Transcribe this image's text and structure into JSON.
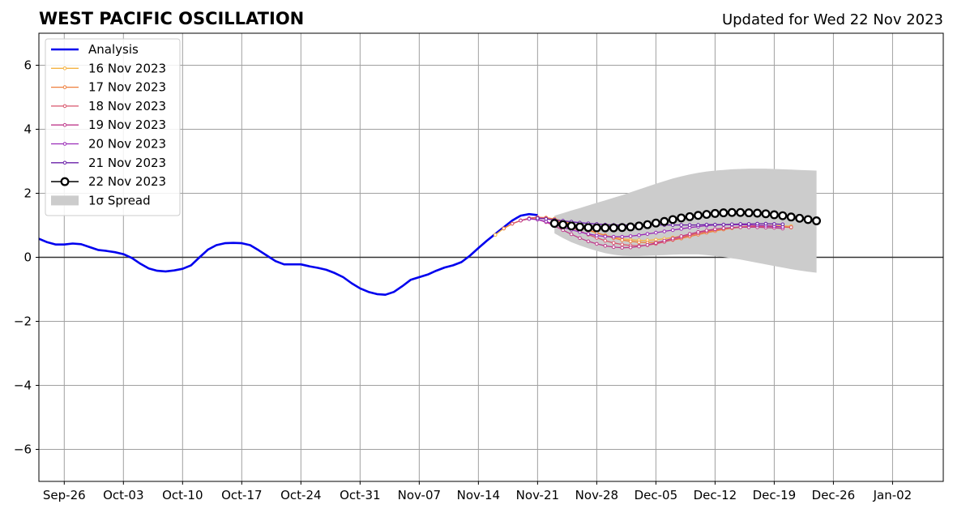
{
  "chart_data": {
    "type": "line",
    "title": "WEST PACIFIC OSCILLATION",
    "subtitle": "Updated for Wed 22 Nov 2023",
    "xlabel": "",
    "ylabel": "",
    "xlim": [
      "2023-09-23",
      "2024-01-08"
    ],
    "ylim": [
      -7,
      7
    ],
    "grid": true,
    "legend_position": "top-left",
    "x_ticks": [
      "Sep-26",
      "Oct-03",
      "Oct-10",
      "Oct-17",
      "Oct-24",
      "Oct-31",
      "Nov-07",
      "Nov-14",
      "Nov-21",
      "Nov-28",
      "Dec-05",
      "Dec-12",
      "Dec-19",
      "Dec-26",
      "Jan-02"
    ],
    "x_tick_dates": [
      "2023-09-26",
      "2023-10-03",
      "2023-10-10",
      "2023-10-17",
      "2023-10-24",
      "2023-10-31",
      "2023-11-07",
      "2023-11-14",
      "2023-11-21",
      "2023-11-28",
      "2023-12-05",
      "2023-12-12",
      "2023-12-19",
      "2023-12-26",
      "2024-01-02"
    ],
    "y_ticks": [
      6,
      4,
      2,
      0,
      -2,
      -4,
      -6
    ],
    "y_tick_labels": [
      "6",
      "4",
      "2",
      "0",
      "−2",
      "−4",
      "−6"
    ],
    "analysis": {
      "name": "Analysis",
      "color": "#0000ee",
      "x": [
        "2023-09-23",
        "2023-09-24",
        "2023-09-25",
        "2023-09-26",
        "2023-09-27",
        "2023-09-28",
        "2023-09-29",
        "2023-09-30",
        "2023-10-01",
        "2023-10-02",
        "2023-10-03",
        "2023-10-04",
        "2023-10-05",
        "2023-10-06",
        "2023-10-07",
        "2023-10-08",
        "2023-10-09",
        "2023-10-10",
        "2023-10-11",
        "2023-10-12",
        "2023-10-13",
        "2023-10-14",
        "2023-10-15",
        "2023-10-16",
        "2023-10-17",
        "2023-10-18",
        "2023-10-19",
        "2023-10-20",
        "2023-10-21",
        "2023-10-22",
        "2023-10-23",
        "2023-10-24",
        "2023-10-25",
        "2023-10-26",
        "2023-10-27",
        "2023-10-28",
        "2023-10-29",
        "2023-10-30",
        "2023-10-31",
        "2023-11-01",
        "2023-11-02",
        "2023-11-03",
        "2023-11-04",
        "2023-11-05",
        "2023-11-06",
        "2023-11-07",
        "2023-11-08",
        "2023-11-09",
        "2023-11-10",
        "2023-11-11",
        "2023-11-12",
        "2023-11-13",
        "2023-11-14",
        "2023-11-15",
        "2023-11-16",
        "2023-11-17",
        "2023-11-18",
        "2023-11-19",
        "2023-11-20",
        "2023-11-21"
      ],
      "values": [
        0.58,
        0.47,
        0.4,
        0.4,
        0.43,
        0.41,
        0.32,
        0.23,
        0.2,
        0.16,
        0.1,
        -0.02,
        -0.2,
        -0.35,
        -0.42,
        -0.44,
        -0.41,
        -0.36,
        -0.25,
        0.0,
        0.24,
        0.38,
        0.44,
        0.45,
        0.44,
        0.38,
        0.22,
        0.05,
        -0.12,
        -0.22,
        -0.22,
        -0.22,
        -0.28,
        -0.33,
        -0.39,
        -0.49,
        -0.62,
        -0.81,
        -0.97,
        -1.08,
        -1.15,
        -1.17,
        -1.08,
        -0.9,
        -0.7,
        -0.62,
        -0.54,
        -0.42,
        -0.32,
        -0.25,
        -0.15,
        0.05,
        0.29,
        0.52,
        0.73,
        0.94,
        1.15,
        1.3,
        1.35,
        1.32
      ]
    },
    "forecasts": [
      {
        "name": "16 Nov 2023",
        "color": "#f5b342",
        "start": "2023-11-16",
        "values": [
          0.7,
          0.9,
          1.05,
          1.15,
          1.2,
          1.22,
          1.2,
          1.16,
          1.1,
          1.02,
          0.93,
          0.84,
          0.76,
          0.69,
          0.63,
          0.58,
          0.55,
          0.53,
          0.53,
          0.55,
          0.58,
          0.62,
          0.66,
          0.71,
          0.76,
          0.8,
          0.85,
          0.89,
          0.92,
          0.95,
          0.97,
          0.98,
          0.99,
          0.99,
          0.98,
          0.97
        ]
      },
      {
        "name": "17 Nov 2023",
        "color": "#ee7f3c",
        "start": "2023-11-17",
        "values": [
          0.9,
          1.05,
          1.15,
          1.22,
          1.25,
          1.24,
          1.2,
          1.13,
          1.05,
          0.96,
          0.86,
          0.77,
          0.68,
          0.6,
          0.54,
          0.5,
          0.47,
          0.46,
          0.47,
          0.5,
          0.54,
          0.59,
          0.65,
          0.71,
          0.77,
          0.82,
          0.87,
          0.91,
          0.94,
          0.96,
          0.97,
          0.97,
          0.96,
          0.95,
          0.93
        ]
      },
      {
        "name": "18 Nov 2023",
        "color": "#d9546b",
        "start": "2023-11-18",
        "values": [
          1.05,
          1.15,
          1.22,
          1.25,
          1.22,
          1.15,
          1.05,
          0.94,
          0.82,
          0.71,
          0.61,
          0.52,
          0.45,
          0.4,
          0.37,
          0.36,
          0.38,
          0.42,
          0.48,
          0.55,
          0.62,
          0.69,
          0.75,
          0.81,
          0.86,
          0.9,
          0.93,
          0.95,
          0.96,
          0.97,
          0.97,
          0.96,
          0.95,
          0.94
        ]
      },
      {
        "name": "19 Nov 2023",
        "color": "#bf3b8c",
        "start": "2023-11-19",
        "values": [
          1.15,
          1.2,
          1.18,
          1.1,
          0.98,
          0.85,
          0.72,
          0.6,
          0.5,
          0.42,
          0.36,
          0.32,
          0.3,
          0.31,
          0.34,
          0.39,
          0.45,
          0.52,
          0.59,
          0.66,
          0.73,
          0.79,
          0.84,
          0.88,
          0.91,
          0.93,
          0.94,
          0.94,
          0.94,
          0.93,
          0.92,
          0.9
        ]
      },
      {
        "name": "20 Nov 2023",
        "color": "#9a2bb8",
        "start": "2023-11-20",
        "values": [
          1.2,
          1.18,
          1.12,
          1.03,
          0.94,
          0.86,
          0.79,
          0.73,
          0.68,
          0.65,
          0.64,
          0.64,
          0.66,
          0.69,
          0.73,
          0.77,
          0.81,
          0.85,
          0.89,
          0.93,
          0.96,
          0.99,
          1.01,
          1.02,
          1.02,
          1.02,
          1.01,
          1.0,
          0.99,
          0.97,
          0.95
        ]
      },
      {
        "name": "21 Nov 2023",
        "color": "#6a1fa8",
        "start": "2023-11-21",
        "values": [
          1.22,
          1.2,
          1.17,
          1.14,
          1.11,
          1.08,
          1.06,
          1.04,
          1.02,
          1.01,
          1.01,
          1.01,
          1.01,
          1.01,
          1.01,
          1.01,
          1.01,
          1.01,
          1.01,
          1.01,
          1.02,
          1.02,
          1.02,
          1.03,
          1.04,
          1.04,
          1.05,
          1.05,
          1.04,
          1.03
        ]
      }
    ],
    "current_forecast": {
      "name": "22 Nov 2023",
      "color": "#000000",
      "start": "2023-11-23",
      "values": [
        1.06,
        1.02,
        0.98,
        0.95,
        0.93,
        0.92,
        0.92,
        0.92,
        0.93,
        0.95,
        0.98,
        1.02,
        1.07,
        1.12,
        1.18,
        1.23,
        1.27,
        1.31,
        1.34,
        1.37,
        1.39,
        1.4,
        1.4,
        1.39,
        1.38,
        1.36,
        1.33,
        1.3,
        1.26,
        1.22,
        1.18,
        1.14
      ]
    },
    "spread": {
      "name": "1σ Spread",
      "color": "#cccccc",
      "start": "2023-11-23",
      "upper": [
        1.3,
        1.38,
        1.46,
        1.54,
        1.62,
        1.7,
        1.78,
        1.86,
        1.94,
        2.03,
        2.12,
        2.21,
        2.3,
        2.38,
        2.46,
        2.53,
        2.59,
        2.64,
        2.68,
        2.71,
        2.73,
        2.75,
        2.76,
        2.77,
        2.77,
        2.77,
        2.76,
        2.75,
        2.74,
        2.73,
        2.72,
        2.71
      ],
      "lower": [
        0.75,
        0.6,
        0.47,
        0.37,
        0.28,
        0.2,
        0.13,
        0.08,
        0.05,
        0.04,
        0.04,
        0.05,
        0.06,
        0.07,
        0.08,
        0.09,
        0.09,
        0.09,
        0.07,
        0.04,
        0.01,
        -0.03,
        -0.07,
        -0.12,
        -0.17,
        -0.22,
        -0.27,
        -0.32,
        -0.37,
        -0.41,
        -0.45,
        -0.48
      ]
    },
    "legend": [
      {
        "label": "Analysis",
        "kind": "line",
        "color": "#0000ee"
      },
      {
        "label": "16 Nov 2023",
        "kind": "marker-line",
        "color": "#f5b342"
      },
      {
        "label": "17 Nov 2023",
        "kind": "marker-line",
        "color": "#ee7f3c"
      },
      {
        "label": "18 Nov 2023",
        "kind": "marker-line",
        "color": "#d9546b"
      },
      {
        "label": "19 Nov 2023",
        "kind": "marker-line",
        "color": "#bf3b8c"
      },
      {
        "label": "20 Nov 2023",
        "kind": "marker-line",
        "color": "#9a2bb8"
      },
      {
        "label": "21 Nov 2023",
        "kind": "marker-line",
        "color": "#6a1fa8"
      },
      {
        "label": "22 Nov 2023",
        "kind": "circle-line",
        "color": "#000000"
      },
      {
        "label": "1σ Spread",
        "kind": "patch",
        "color": "#cccccc"
      }
    ]
  }
}
